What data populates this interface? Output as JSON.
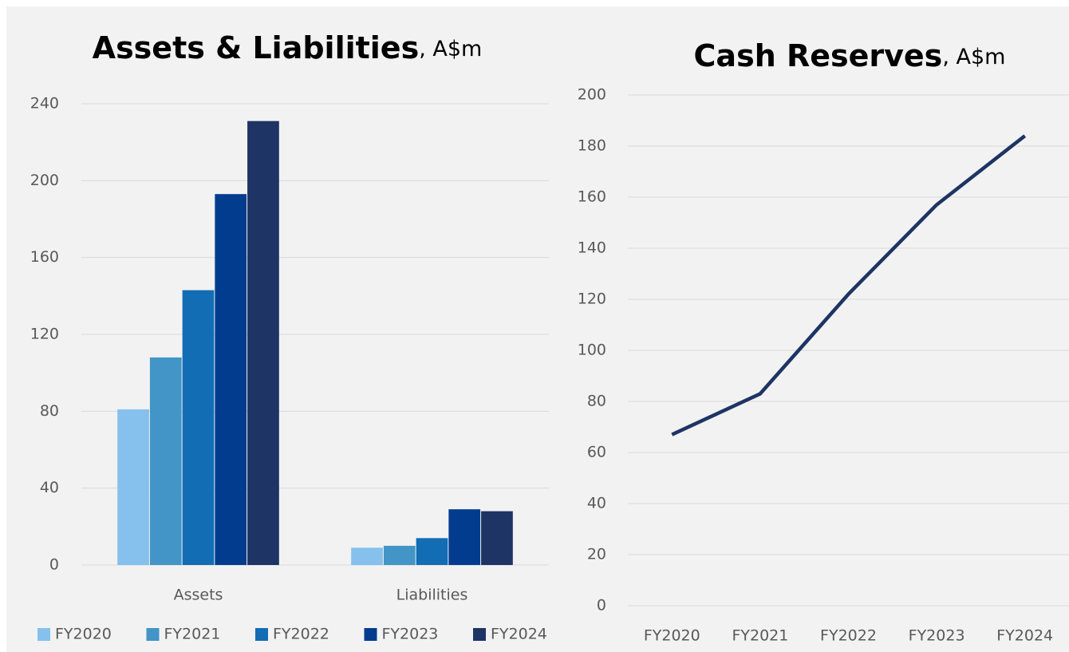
{
  "chart_data": [
    {
      "type": "bar",
      "title": "Assets & Liabilities",
      "title_suffix": ", A$m",
      "categories": [
        "Assets",
        "Liabilities"
      ],
      "series": [
        {
          "name": "FY2020",
          "color": "#85c1ec",
          "values": [
            81,
            9
          ]
        },
        {
          "name": "FY2021",
          "color": "#4295c6",
          "values": [
            108,
            10
          ]
        },
        {
          "name": "FY2022",
          "color": "#126db5",
          "values": [
            143,
            14
          ]
        },
        {
          "name": "FY2023",
          "color": "#023c8f",
          "values": [
            193,
            29
          ]
        },
        {
          "name": "FY2024",
          "color": "#1d3464",
          "values": [
            231,
            28
          ]
        }
      ],
      "ylim": [
        0,
        240
      ],
      "yticks": [
        0,
        40,
        80,
        120,
        160,
        200,
        240
      ],
      "grid": true,
      "legend": "bottom"
    },
    {
      "type": "line",
      "title": "Cash Reserves",
      "title_suffix": ", A$m",
      "categories": [
        "FY2020",
        "FY2021",
        "FY2022",
        "FY2023",
        "FY2024"
      ],
      "values": [
        67,
        83,
        122,
        157,
        184
      ],
      "color": "#1d3464",
      "ylim": [
        0,
        200
      ],
      "yticks": [
        0,
        20,
        40,
        60,
        80,
        100,
        120,
        140,
        160,
        180,
        200
      ],
      "grid": true
    }
  ]
}
